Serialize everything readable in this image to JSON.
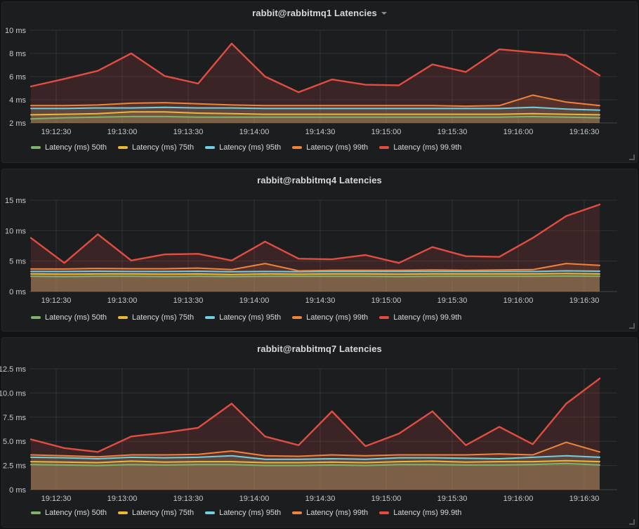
{
  "dashboard": {
    "app": "grafana-dashboard",
    "panel_count": 3
  },
  "chart_data": [
    {
      "type": "area",
      "title": "rabbit@rabbitmq1 Latencies",
      "has_title_dropdown": true,
      "ylabel": "",
      "xlabel": "",
      "ylim": [
        2,
        10
      ],
      "y_tick_values": [
        2,
        4,
        6,
        8,
        10
      ],
      "y_tick_labels": [
        "2 ms",
        "4 ms",
        "6 ms",
        "8 ms",
        "10 ms"
      ],
      "x_tick_labels": [
        "19:12:30",
        "19:13:00",
        "19:13:30",
        "19:14:00",
        "19:14:30",
        "19:15:00",
        "19:15:30",
        "19:16:00",
        "19:16:30"
      ],
      "x_start": "19:12:15",
      "x_interval_s": 15,
      "legend_position": "bottom-left",
      "grid": true,
      "series": [
        {
          "name": "Latency (ms) 50th",
          "color": "#7EB26D",
          "values": [
            2.35,
            2.45,
            2.5,
            2.55,
            2.55,
            2.5,
            2.5,
            2.5,
            2.5,
            2.5,
            2.5,
            2.5,
            2.5,
            2.5,
            2.5,
            2.55,
            2.5,
            2.45
          ]
        },
        {
          "name": "Latency (ms) 75th",
          "color": "#EAB839",
          "values": [
            2.7,
            2.75,
            2.8,
            2.95,
            2.95,
            2.85,
            2.8,
            2.75,
            2.75,
            2.75,
            2.75,
            2.75,
            2.75,
            2.75,
            2.75,
            2.8,
            2.75,
            2.7
          ]
        },
        {
          "name": "Latency (ms) 95th",
          "color": "#6ED0E0",
          "values": [
            3.25,
            3.25,
            3.3,
            3.3,
            3.35,
            3.3,
            3.3,
            3.25,
            3.25,
            3.25,
            3.25,
            3.25,
            3.25,
            3.25,
            3.25,
            3.35,
            3.2,
            3.1
          ]
        },
        {
          "name": "Latency (ms) 99th",
          "color": "#EF843C",
          "values": [
            3.5,
            3.5,
            3.55,
            3.7,
            3.75,
            3.65,
            3.55,
            3.5,
            3.5,
            3.5,
            3.5,
            3.5,
            3.5,
            3.45,
            3.5,
            4.4,
            3.8,
            3.5
          ]
        },
        {
          "name": "Latency (ms) 99.9th",
          "color": "#E24D42",
          "values": [
            5.15,
            5.8,
            6.5,
            8.0,
            6.05,
            5.4,
            8.85,
            6.0,
            4.65,
            5.75,
            5.3,
            5.25,
            7.05,
            6.4,
            8.35,
            8.1,
            7.85,
            6.1
          ]
        }
      ]
    },
    {
      "type": "area",
      "title": "rabbit@rabbitmq4 Latencies",
      "has_title_dropdown": false,
      "ylabel": "",
      "xlabel": "",
      "ylim": [
        0,
        15
      ],
      "y_tick_values": [
        0,
        5,
        10,
        15
      ],
      "y_tick_labels": [
        "0 ms",
        "5 ms",
        "10 ms",
        "15 ms"
      ],
      "x_tick_labels": [
        "19:12:30",
        "19:13:00",
        "19:13:30",
        "19:14:00",
        "19:14:30",
        "19:15:00",
        "19:15:30",
        "19:16:00",
        "19:16:30"
      ],
      "x_start": "19:12:15",
      "x_interval_s": 15,
      "legend_position": "bottom-left",
      "grid": true,
      "series": [
        {
          "name": "Latency (ms) 50th",
          "color": "#7EB26D",
          "values": [
            2.5,
            2.45,
            2.5,
            2.5,
            2.45,
            2.5,
            2.45,
            2.5,
            2.5,
            2.5,
            2.5,
            2.45,
            2.5,
            2.5,
            2.5,
            2.5,
            2.55,
            2.5
          ]
        },
        {
          "name": "Latency (ms) 75th",
          "color": "#EAB839",
          "values": [
            2.9,
            2.85,
            2.9,
            2.9,
            2.85,
            2.9,
            2.8,
            2.9,
            2.85,
            2.9,
            2.9,
            2.85,
            2.9,
            2.9,
            2.9,
            2.9,
            2.95,
            2.9
          ]
        },
        {
          "name": "Latency (ms) 95th",
          "color": "#6ED0E0",
          "values": [
            3.3,
            3.3,
            3.35,
            3.3,
            3.3,
            3.35,
            3.25,
            3.3,
            3.25,
            3.3,
            3.3,
            3.3,
            3.3,
            3.3,
            3.3,
            3.3,
            3.4,
            3.35
          ]
        },
        {
          "name": "Latency (ms) 99th",
          "color": "#EF843C",
          "values": [
            3.7,
            3.7,
            3.8,
            3.75,
            3.75,
            3.85,
            3.6,
            4.6,
            3.4,
            3.5,
            3.5,
            3.5,
            3.55,
            3.5,
            3.55,
            3.6,
            4.6,
            4.3
          ]
        },
        {
          "name": "Latency (ms) 99.9th",
          "color": "#E24D42",
          "values": [
            8.8,
            4.7,
            9.4,
            5.1,
            6.1,
            6.2,
            5.1,
            8.2,
            5.4,
            5.3,
            6.0,
            4.7,
            7.3,
            5.8,
            5.7,
            8.8,
            12.4,
            14.3
          ]
        }
      ]
    },
    {
      "type": "area",
      "title": "rabbit@rabbitmq7 Latencies",
      "has_title_dropdown": false,
      "ylabel": "",
      "xlabel": "",
      "ylim": [
        0,
        12.5
      ],
      "y_tick_values": [
        0,
        2.5,
        5,
        7.5,
        10,
        12.5
      ],
      "y_tick_labels": [
        "0 ms",
        "2.5 ms",
        "5.0 ms",
        "7.5 ms",
        "10.0 ms",
        "12.5 ms"
      ],
      "x_tick_labels": [
        "19:12:30",
        "19:13:00",
        "19:13:30",
        "19:14:00",
        "19:14:30",
        "19:15:00",
        "19:15:30",
        "19:16:00",
        "19:16:30"
      ],
      "x_start": "19:12:15",
      "x_interval_s": 15,
      "legend_position": "bottom-left",
      "grid": true,
      "series": [
        {
          "name": "Latency (ms) 50th",
          "color": "#7EB26D",
          "values": [
            2.6,
            2.55,
            2.5,
            2.6,
            2.55,
            2.6,
            2.6,
            2.5,
            2.5,
            2.55,
            2.5,
            2.6,
            2.6,
            2.55,
            2.55,
            2.6,
            2.7,
            2.55
          ]
        },
        {
          "name": "Latency (ms) 75th",
          "color": "#EAB839",
          "values": [
            2.9,
            2.85,
            2.8,
            2.95,
            2.85,
            2.9,
            2.9,
            2.8,
            2.8,
            2.85,
            2.8,
            2.9,
            2.95,
            2.85,
            2.9,
            2.9,
            3.0,
            2.9
          ]
        },
        {
          "name": "Latency (ms) 95th",
          "color": "#6ED0E0",
          "values": [
            3.35,
            3.3,
            3.2,
            3.35,
            3.3,
            3.35,
            3.5,
            3.15,
            3.15,
            3.2,
            3.15,
            3.3,
            3.3,
            3.25,
            3.2,
            3.35,
            3.5,
            3.35
          ]
        },
        {
          "name": "Latency (ms) 99th",
          "color": "#EF843C",
          "values": [
            3.6,
            3.5,
            3.4,
            3.6,
            3.6,
            3.65,
            4.0,
            3.5,
            3.45,
            3.6,
            3.5,
            3.6,
            3.6,
            3.6,
            3.7,
            3.6,
            4.9,
            3.9
          ]
        },
        {
          "name": "Latency (ms) 99.9th",
          "color": "#E24D42",
          "values": [
            5.2,
            4.3,
            3.9,
            5.5,
            5.9,
            6.4,
            8.9,
            5.5,
            4.6,
            8.1,
            4.5,
            5.8,
            8.1,
            4.6,
            6.5,
            4.7,
            8.9,
            11.5
          ]
        }
      ]
    }
  ],
  "colors": {
    "panel_background": "#1b1d1f",
    "page_background": "#121314",
    "grid": "rgba(255,255,255,0.09)",
    "axis_text": "#c8c9ca",
    "title_text": "#d8d9da",
    "legend_text": "#d8d9da"
  }
}
